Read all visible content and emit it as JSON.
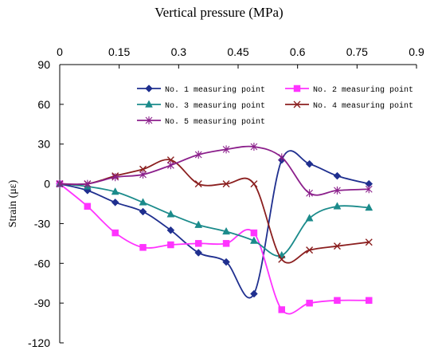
{
  "chart_data": {
    "type": "line",
    "title": "Vertical pressure (MPa)",
    "xlabel": "Vertical pressure (MPa)",
    "ylabel": "Strain (με)",
    "xlim": [
      0,
      0.9
    ],
    "ylim": [
      -120,
      90
    ],
    "xticks": [
      "0",
      "0.15",
      "0.3",
      "0.45",
      "0.6",
      "0.75",
      "0.9"
    ],
    "yticks": [
      "90",
      "60",
      "30",
      "0",
      "-30",
      "-60",
      "-90",
      "-120"
    ],
    "grid": false,
    "legend_position": "top-right",
    "series": [
      {
        "name": "No. 1 measuring point",
        "color": "#1f2f8f",
        "marker": "diamond",
        "x": [
          0,
          0.07,
          0.14,
          0.21,
          0.28,
          0.35,
          0.42,
          0.49,
          0.56,
          0.63,
          0.7,
          0.78
        ],
        "y": [
          0,
          -5,
          -14,
          -21,
          -35,
          -52,
          -59,
          -83,
          18,
          15,
          6,
          0
        ]
      },
      {
        "name": "No. 2 measuring point",
        "color": "#ff33ff",
        "marker": "square",
        "x": [
          0,
          0.07,
          0.14,
          0.21,
          0.28,
          0.35,
          0.42,
          0.49,
          0.56,
          0.63,
          0.7,
          0.78
        ],
        "y": [
          0,
          -17,
          -37,
          -48,
          -46,
          -45,
          -45,
          -37,
          -95,
          -90,
          -88,
          -88
        ]
      },
      {
        "name": "No. 3 measuring point",
        "color": "#1b8b8b",
        "marker": "triangle",
        "x": [
          0,
          0.07,
          0.14,
          0.21,
          0.28,
          0.35,
          0.42,
          0.49,
          0.56,
          0.63,
          0.7,
          0.78
        ],
        "y": [
          0,
          -2,
          -6,
          -14,
          -23,
          -31,
          -36,
          -43,
          -54,
          -26,
          -17,
          -18
        ]
      },
      {
        "name": "No. 4 measuring point",
        "color": "#8b1f1f",
        "marker": "x",
        "x": [
          0,
          0.07,
          0.14,
          0.21,
          0.28,
          0.35,
          0.42,
          0.49,
          0.56,
          0.63,
          0.7,
          0.78
        ],
        "y": [
          0,
          0,
          6,
          11,
          18,
          0,
          0,
          0,
          -57,
          -50,
          -47,
          -44
        ]
      },
      {
        "name": "No. 5 measuring point",
        "color": "#8b1f8b",
        "marker": "star",
        "x": [
          0,
          0.07,
          0.14,
          0.21,
          0.28,
          0.35,
          0.42,
          0.49,
          0.56,
          0.63,
          0.7,
          0.78
        ],
        "y": [
          0,
          0,
          5,
          7,
          14,
          22,
          26,
          28,
          20,
          -7,
          -5,
          -4
        ]
      }
    ]
  }
}
